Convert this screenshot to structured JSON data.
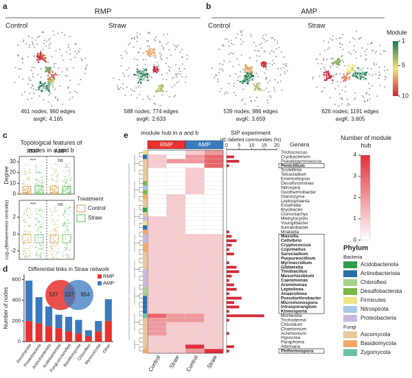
{
  "panel_a": {
    "label": "a",
    "title": "RMP",
    "networks": [
      {
        "name": "Control",
        "stats": "461 nodes; 960 edges",
        "avgk": "avgK: 4.165"
      },
      {
        "name": "Straw",
        "stats": "588 nodes; 774 edges",
        "avgk": "avgK: 2.633"
      }
    ]
  },
  "panel_b": {
    "label": "b",
    "title": "AMP",
    "networks": [
      {
        "name": "Control",
        "stats": "539 nodes; 986 edges",
        "avgk": "avgK: 3.659"
      },
      {
        "name": "Straw",
        "stats": "626 nodes; 1191 edges",
        "avgk": "avgK: 3.805"
      }
    ]
  },
  "module_scale": {
    "title": "Module",
    "lim": [
      1,
      10
    ],
    "ticks": [
      1,
      5,
      10
    ],
    "colors": [
      "#1a7a4c",
      "#f3e27a",
      "#c8283c"
    ]
  },
  "panel_c": {
    "label": "c",
    "title": "Topological features of nodes in a and b",
    "groups": [
      "RMP",
      "AMP"
    ],
    "plots": [
      {
        "ylabel": "Degree",
        "ylim": [
          0,
          35
        ],
        "yticks": [
          0,
          10,
          20,
          30
        ],
        "significance": [
          "***",
          "ns"
        ]
      },
      {
        "ylabel": "Log₁₀(Betweenness centrality)",
        "ylim": [
          -3,
          4
        ],
        "yticks": [
          -2,
          0,
          2
        ],
        "significance": [
          "***",
          "ns"
        ]
      }
    ],
    "legend": {
      "title": "Treatment",
      "entries": [
        {
          "name": "Control",
          "color": "#d4a24c"
        },
        {
          "name": "Straw",
          "color": "#5cc25c"
        }
      ]
    }
  },
  "panel_d": {
    "label": "d",
    "type": "bar",
    "title": "Differential links in Straw network",
    "ylabel": "Number of nodes",
    "categories": [
      "Ascomycota",
      "Proteobacteria",
      "Actinobacteriota",
      "Acidobacteriota",
      "Fungi-unclassified",
      "Basidiomycota",
      "Chloroflexi",
      "Myxococcota",
      "Other"
    ],
    "series": [
      {
        "name": "RMP",
        "color": "#e8312f",
        "values": [
          200,
          180,
          150,
          130,
          100,
          80,
          50,
          100,
          200
        ]
      },
      {
        "name": "AMP",
        "color": "#3a7bbf",
        "values": [
          390,
          250,
          190,
          130,
          140,
          130,
          60,
          100,
          210
        ]
      }
    ],
    "ylim": [
      0,
      650
    ],
    "yticks": [
      0,
      200,
      400,
      600
    ],
    "venn": {
      "left": 537,
      "overlap": 237,
      "right": 954
    }
  },
  "panel_e": {
    "label": "e",
    "title": "module hub in a and b",
    "groups": [
      "RMP",
      "AMP"
    ],
    "group_colors": [
      "#e8312f",
      "#3a7bbf"
    ],
    "columns": [
      "Control",
      "Straw",
      "Control",
      "Straw"
    ],
    "sip_title": "SIP experiment",
    "sip_xlabel": "¹³C-labeled communities (%)",
    "sip_xlim": [
      0,
      20
    ],
    "sip_xticks": [
      0,
      5,
      10,
      15,
      20
    ],
    "sip_color": "#d42a35",
    "genera_title": "Genera",
    "hub_title": "Number of module hub",
    "hub_lim": [
      0,
      4
    ],
    "hub_ticks": [
      0,
      1,
      2,
      3,
      4
    ],
    "hub_colors": [
      "#ffffff",
      "#e0303b"
    ],
    "genera": [
      {
        "name": "Trichococcus",
        "phylum": "Firmicutes",
        "bold": false,
        "hub": [
          0,
          0,
          1,
          2
        ],
        "sip": 0
      },
      {
        "name": "Cryobacterium",
        "phylum": "Actinobacteriota",
        "bold": false,
        "hub": [
          1,
          0,
          2,
          3
        ],
        "sip": 3
      },
      {
        "name": "Pseudogymnoascus",
        "phylum": "Ascomycota",
        "bold": false,
        "hub": [
          1,
          2,
          2,
          3
        ],
        "sip": 5
      },
      {
        "name": "Penicillium",
        "phylum": "Ascomycota",
        "bold": true,
        "hub": [
          1,
          0,
          0,
          3
        ],
        "sip": 1
      },
      {
        "name": "Scutellinia",
        "phylum": "Ascomycota",
        "bold": false,
        "hub": [
          0,
          0,
          1,
          0
        ],
        "sip": 0
      },
      {
        "name": "Tetracladium",
        "phylum": "Ascomycota",
        "bold": false,
        "hub": [
          0,
          0,
          1,
          0
        ],
        "sip": 0
      },
      {
        "name": "Emericellopsis",
        "phylum": "Ascomycota",
        "bold": false,
        "hub": [
          0,
          0,
          1,
          0
        ],
        "sip": 0
      },
      {
        "name": "Desulfuromonas",
        "phylum": "Desulfobacterota",
        "bold": false,
        "hub": [
          0,
          0,
          1,
          0
        ],
        "sip": 0
      },
      {
        "name": "Nitrospira",
        "phylum": "Nitrospirota",
        "bold": false,
        "hub": [
          0,
          0,
          1,
          0
        ],
        "sip": 0
      },
      {
        "name": "Geothermobacter",
        "phylum": "Desulfobacterota",
        "bold": false,
        "hub": [
          0,
          0,
          1,
          0
        ],
        "sip": 0
      },
      {
        "name": "Glaciozyma",
        "phylum": "Basidiomycota",
        "bold": false,
        "hub": [
          0,
          1,
          0,
          0
        ],
        "sip": 0
      },
      {
        "name": "Leptosphaeria",
        "phylum": "Ascomycota",
        "bold": false,
        "hub": [
          0,
          1,
          0,
          0
        ],
        "sip": 0
      },
      {
        "name": "Exophiala",
        "phylum": "Ascomycota",
        "bold": false,
        "hub": [
          0,
          1,
          0,
          0
        ],
        "sip": 0
      },
      {
        "name": "Bryobacter",
        "phylum": "Acidobacteriota",
        "bold": false,
        "hub": [
          0,
          1,
          0,
          0
        ],
        "sip": 0
      },
      {
        "name": "Clonostachys",
        "phylum": "Ascomycota",
        "bold": false,
        "hub": [
          0,
          1,
          0,
          0
        ],
        "sip": 0
      },
      {
        "name": "Methylocystis",
        "phylum": "Proteobacteria",
        "bold": false,
        "hub": [
          1,
          1,
          0,
          0
        ],
        "sip": 0
      },
      {
        "name": "Youngiibacter",
        "phylum": "Firmicutes",
        "bold": false,
        "hub": [
          1,
          1,
          0,
          0
        ],
        "sip": 0
      },
      {
        "name": "Ilumatobacter",
        "phylum": "Actinobacteriota",
        "bold": false,
        "hub": [
          1,
          1,
          0,
          0
        ],
        "sip": 0
      },
      {
        "name": "Mrakiella",
        "phylum": "Basidiomycota",
        "bold": false,
        "hub": [
          1,
          1,
          0,
          0
        ],
        "sip": 1
      },
      {
        "name": "Massilia",
        "phylum": "Proteobacteria",
        "bold": true,
        "hub": [
          1,
          1,
          1,
          1
        ],
        "sip": 2
      },
      {
        "name": "Cellvibrio",
        "phylum": "Proteobacteria",
        "bold": true,
        "hub": [
          1,
          1,
          1,
          1
        ],
        "sip": 4
      },
      {
        "name": "Cryptococcus",
        "phylum": "Basidiomycota",
        "bold": true,
        "hub": [
          1,
          1,
          1,
          1
        ],
        "sip": 2
      },
      {
        "name": "Coprinellus",
        "phylum": "Basidiomycota",
        "bold": true,
        "hub": [
          1,
          1,
          1,
          1
        ],
        "sip": 1
      },
      {
        "name": "Sarocladium",
        "phylum": "Ascomycota",
        "bold": true,
        "hub": [
          1,
          1,
          1,
          1
        ],
        "sip": 3
      },
      {
        "name": "Purpureocillium",
        "phylum": "Ascomycota",
        "bold": true,
        "hub": [
          1,
          1,
          1,
          1
        ],
        "sip": 0
      },
      {
        "name": "Myrmecridium",
        "phylum": "Ascomycota",
        "bold": true,
        "hub": [
          1,
          1,
          1,
          1
        ],
        "sip": 1
      },
      {
        "name": "Gibberella",
        "phylum": "Ascomycota",
        "bold": true,
        "hub": [
          1,
          1,
          1,
          1
        ],
        "sip": 4
      },
      {
        "name": "Thiobacillus",
        "phylum": "Proteobacteria",
        "bold": true,
        "hub": [
          1,
          1,
          1,
          1
        ],
        "sip": 5
      },
      {
        "name": "Mesorhizobium",
        "phylum": "Proteobacteria",
        "bold": true,
        "hub": [
          1,
          1,
          1,
          1
        ],
        "sip": 2
      },
      {
        "name": "Caenimonas",
        "phylum": "Proteobacteria",
        "bold": true,
        "hub": [
          1,
          1,
          1,
          1
        ],
        "sip": 1
      },
      {
        "name": "Arenimonas",
        "phylum": "Proteobacteria",
        "bold": true,
        "hub": [
          1,
          1,
          1,
          1
        ],
        "sip": 3
      },
      {
        "name": "Leptolinea",
        "phylum": "Chloroflexi",
        "bold": true,
        "hub": [
          1,
          1,
          1,
          1
        ],
        "sip": 4
      },
      {
        "name": "Anaerolinea",
        "phylum": "Chloroflexi",
        "bold": true,
        "hub": [
          1,
          1,
          1,
          1
        ],
        "sip": 1
      },
      {
        "name": "Pseudarthrobacter",
        "phylum": "Actinobacteriota",
        "bold": true,
        "hub": [
          1,
          1,
          1,
          1
        ],
        "sip": 6
      },
      {
        "name": "Micromonospora",
        "phylum": "Actinobacteriota",
        "bold": true,
        "hub": [
          1,
          1,
          1,
          1
        ],
        "sip": 3
      },
      {
        "name": "Intrasporangium",
        "phylum": "Actinobacteriota",
        "bold": true,
        "hub": [
          1,
          1,
          1,
          1
        ],
        "sip": 5
      },
      {
        "name": "Kineosporia",
        "phylum": "Actinobacteriota",
        "bold": true,
        "hub": [
          1,
          1,
          1,
          1
        ],
        "sip": 1
      },
      {
        "name": "Mortierella",
        "phylum": "Zygomycota",
        "bold": false,
        "hub": [
          3,
          2,
          2,
          1
        ],
        "sip": 15
      },
      {
        "name": "Trichoderma",
        "phylum": "Ascomycota",
        "bold": false,
        "hub": [
          2,
          2,
          2,
          1
        ],
        "sip": 1
      },
      {
        "name": "Chloridium",
        "phylum": "Ascomycota",
        "bold": false,
        "hub": [
          2,
          1,
          1,
          1
        ],
        "sip": 0
      },
      {
        "name": "Chaetomium",
        "phylum": "Ascomycota",
        "bold": false,
        "hub": [
          2,
          1,
          1,
          1
        ],
        "sip": 0
      },
      {
        "name": "Acremonium",
        "phylum": "Ascomycota",
        "bold": false,
        "hub": [
          2,
          1,
          1,
          1
        ],
        "sip": 1
      },
      {
        "name": "Hypocrea",
        "phylum": "Ascomycota",
        "bold": false,
        "hub": [
          1,
          1,
          1,
          1
        ],
        "sip": 0
      },
      {
        "name": "Paraphoma",
        "phylum": "Ascomycota",
        "bold": false,
        "hub": [
          1,
          1,
          1,
          1
        ],
        "sip": 0
      },
      {
        "name": "Alternaria",
        "phylum": "Ascomycota",
        "bold": false,
        "hub": [
          1,
          1,
          4,
          1
        ],
        "sip": 3
      },
      {
        "name": "Piriformospora",
        "phylum": "Basidiomycota",
        "bold": true,
        "hub": [
          1,
          1,
          2,
          4
        ],
        "sip": 1
      }
    ],
    "phylum_title": "Phylum",
    "phylum_groups": [
      {
        "name": "Bacteria",
        "phyla": [
          {
            "name": "Acidobacteriota",
            "color": "#2e9c4a"
          },
          {
            "name": "Actinobacteriota",
            "color": "#2b6fa8"
          },
          {
            "name": "Chloroflexi",
            "color": "#a8d08d"
          },
          {
            "name": "Desulfobacterota",
            "color": "#7ab648"
          },
          {
            "name": "Firmicutes",
            "color": "#f2e28a"
          },
          {
            "name": "Nitrospirota",
            "color": "#a9c8e8"
          },
          {
            "name": "Proteobacteria",
            "color": "#c9b8dd"
          }
        ]
      },
      {
        "name": "Fungi",
        "phyla": [
          {
            "name": "Ascomycota",
            "color": "#e8c79a"
          },
          {
            "name": "Basidiomycota",
            "color": "#f2a766"
          },
          {
            "name": "Zygomycota",
            "color": "#6fc3a0"
          }
        ]
      }
    ]
  }
}
